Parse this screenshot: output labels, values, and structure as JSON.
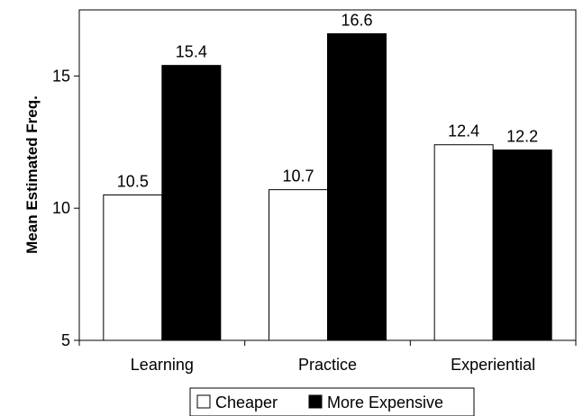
{
  "chart_data": {
    "type": "bar",
    "categories": [
      "Learning",
      "Practice",
      "Experiential"
    ],
    "series": [
      {
        "name": "Cheaper",
        "values": [
          10.5,
          10.7,
          12.4
        ],
        "color": "#ffffff"
      },
      {
        "name": "More Expensive",
        "values": [
          15.4,
          16.6,
          12.2
        ],
        "color": "#000000"
      }
    ],
    "value_labels": [
      [
        "10.5",
        "10.7",
        "12.4"
      ],
      [
        "15.4",
        "16.6",
        "12.2"
      ]
    ],
    "ylabel": "Mean Estimated Freq.",
    "xlabel": "",
    "ylim": [
      5,
      17.5
    ],
    "yticks": [
      5,
      10,
      15
    ],
    "ytick_labels": [
      "5",
      "10",
      "15"
    ],
    "grid": false,
    "legend": {
      "position": "bottom",
      "entries": [
        "Cheaper",
        "More Expensive"
      ]
    }
  }
}
